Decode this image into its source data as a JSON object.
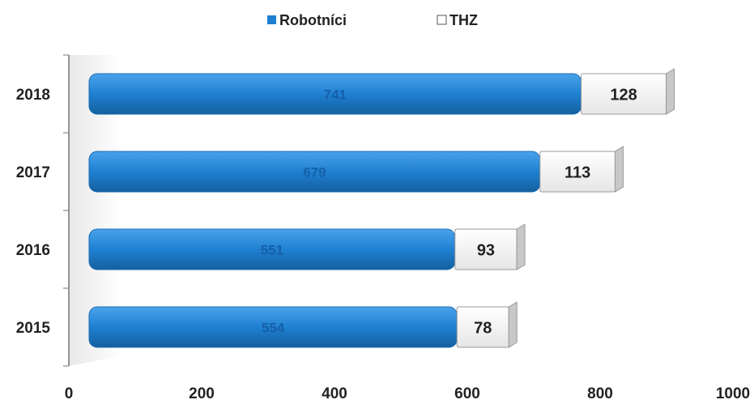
{
  "chart_data": {
    "type": "stacked-barh",
    "categories": [
      "2018",
      "2017",
      "2016",
      "2015"
    ],
    "series": [
      {
        "name": "Robotníci",
        "color": "#1f80d2",
        "values": [
          741,
          679,
          551,
          554
        ]
      },
      {
        "name": "THZ",
        "color": "#ffffff",
        "values": [
          128,
          113,
          93,
          78
        ]
      }
    ],
    "xlim": [
      0,
      1000
    ],
    "xticks": [
      0,
      200,
      400,
      600,
      800,
      1000
    ]
  }
}
